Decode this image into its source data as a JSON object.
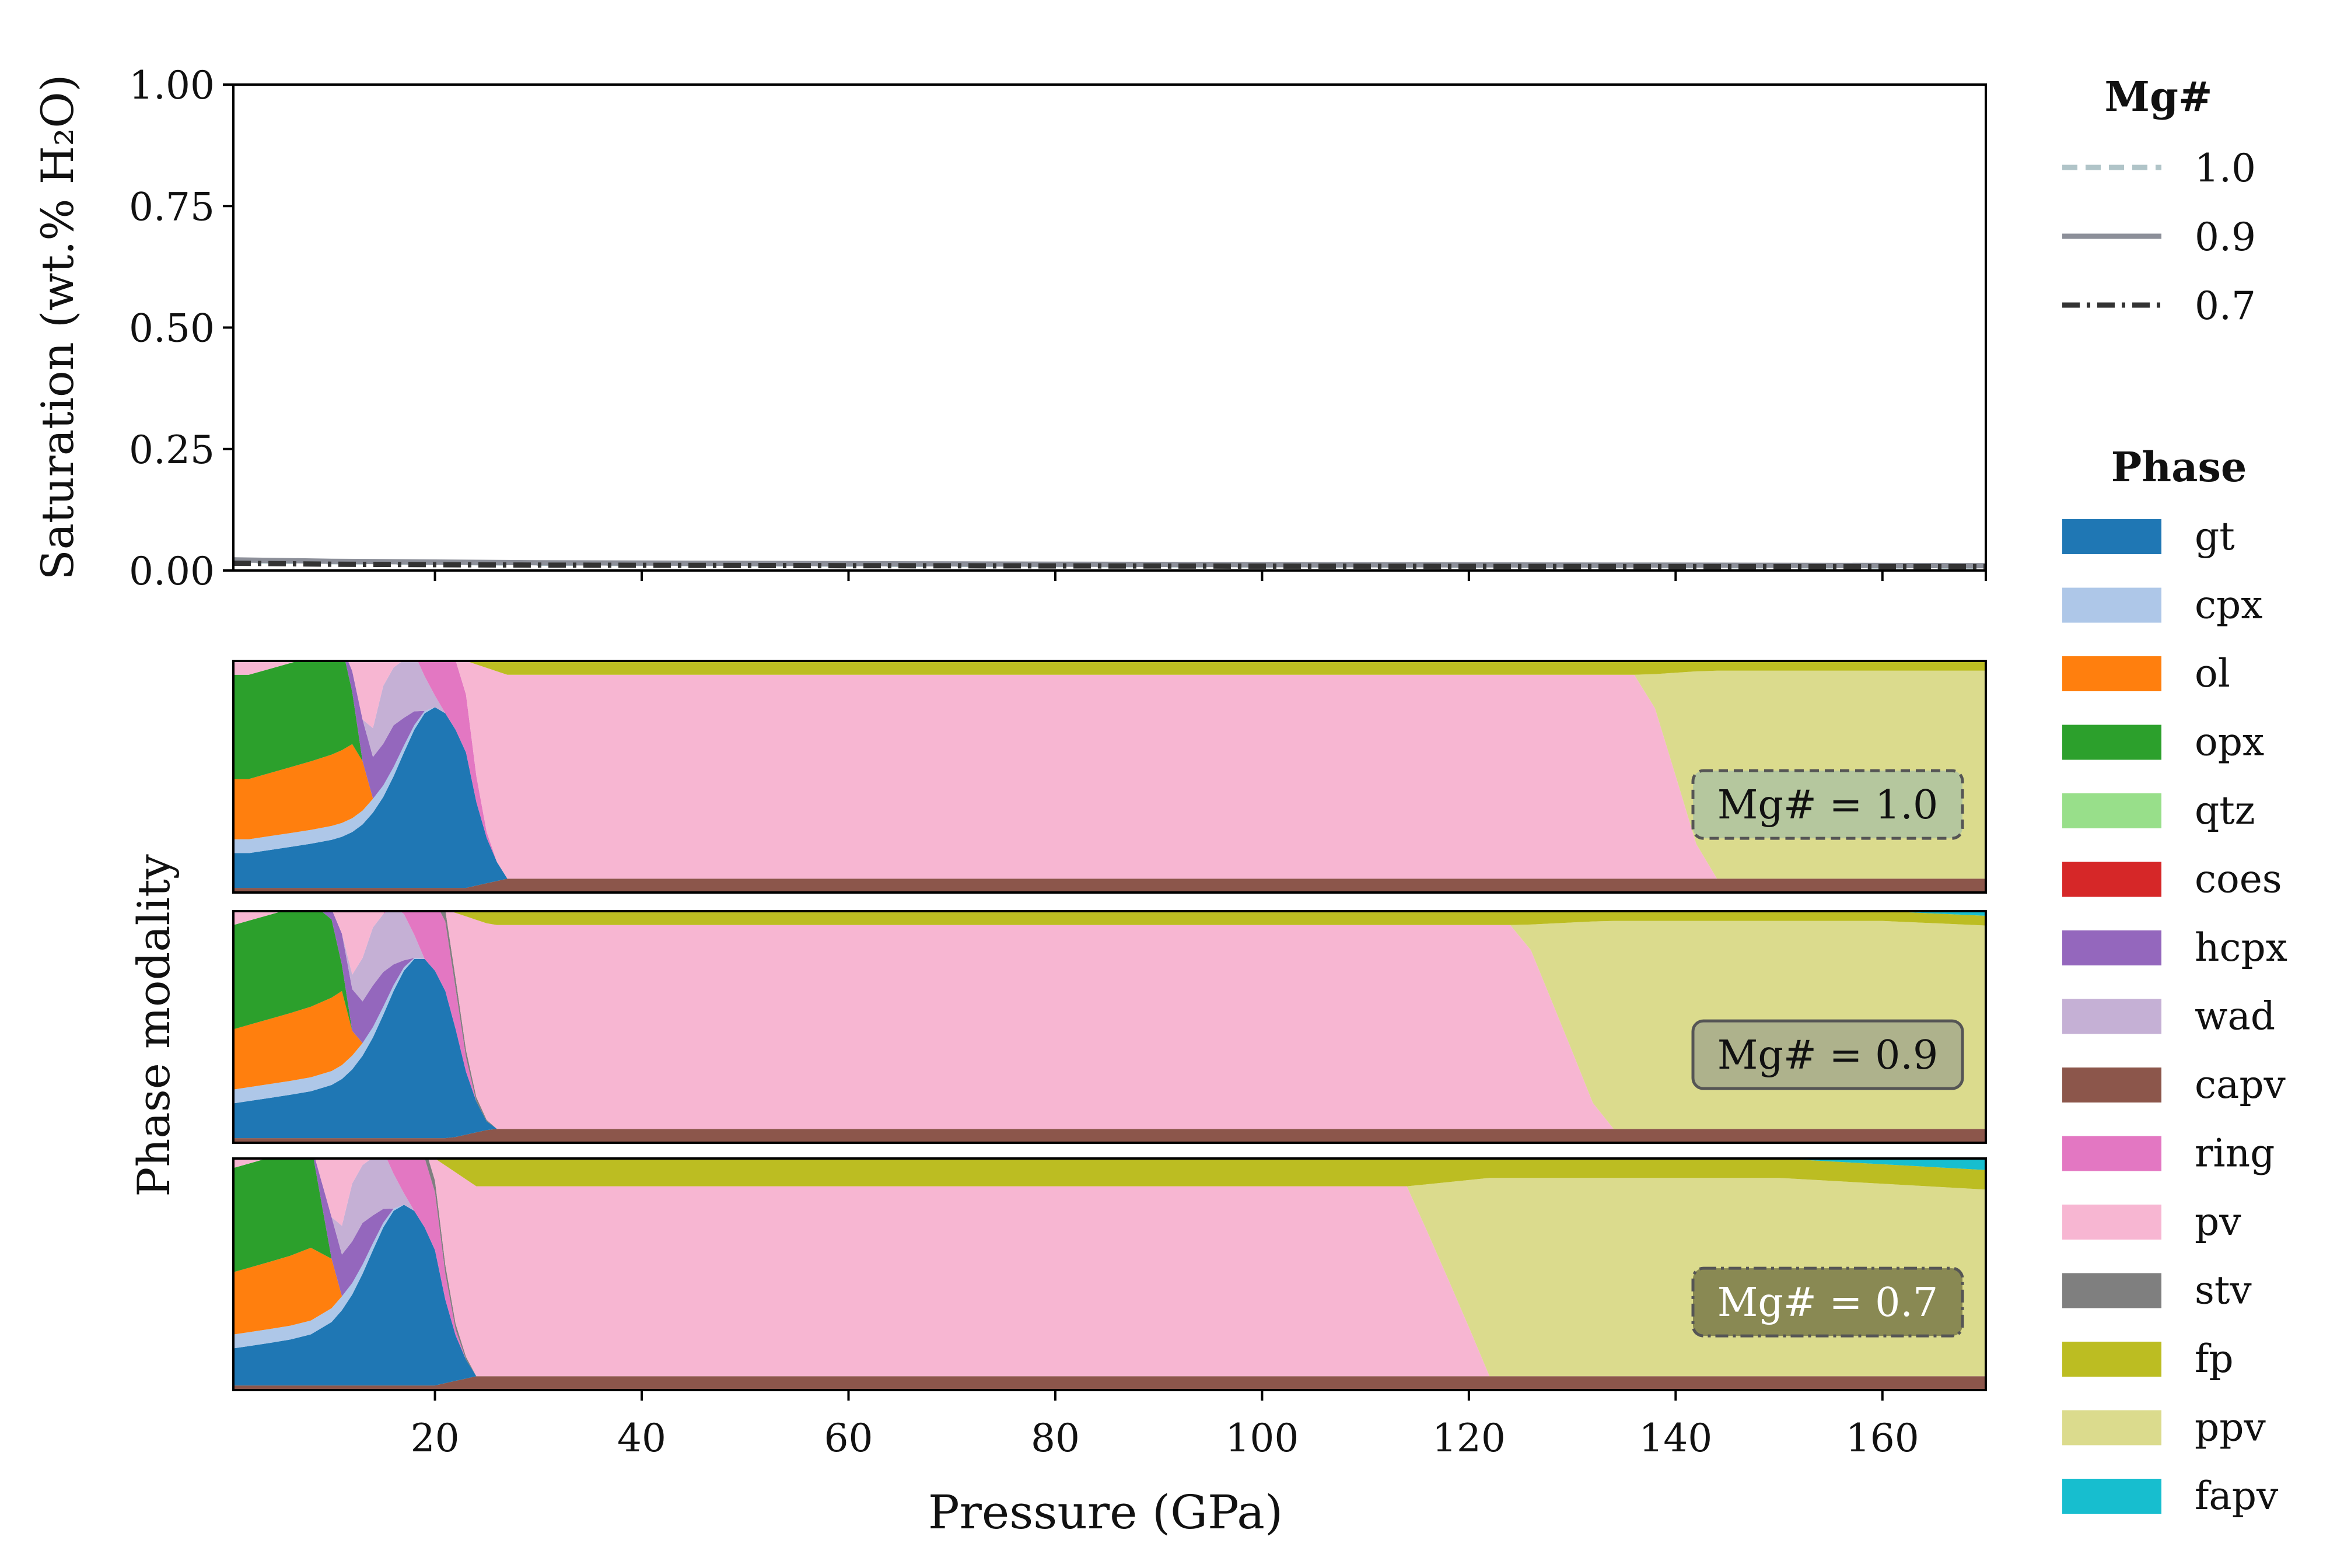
{
  "chart_data": [
    {
      "panel": "saturation",
      "type": "line",
      "ylabel": "Saturation (wt.% H₂O)",
      "ylim": [
        0,
        1.0
      ],
      "xlim": [
        0.5,
        170
      ],
      "yticks": [
        "0.00",
        "0.25",
        "0.50",
        "0.75",
        "1.00"
      ],
      "legend_title": "Mg#",
      "legend_position": "top-right, outside",
      "series": [
        {
          "name": "1.0",
          "style": "dashed",
          "color": "#b0c4c8",
          "points": [
            [
              0.5,
              0.02
            ],
            [
              10,
              0.018
            ],
            [
              30,
              0.015
            ],
            [
              60,
              0.013
            ],
            [
              100,
              0.011
            ],
            [
              140,
              0.01
            ],
            [
              170,
              0.009
            ]
          ]
        },
        {
          "name": "0.9",
          "style": "solid",
          "color": "#8c8f99",
          "points": [
            [
              0.5,
              0.022
            ],
            [
              10,
              0.019
            ],
            [
              30,
              0.016
            ],
            [
              60,
              0.014
            ],
            [
              100,
              0.012
            ],
            [
              140,
              0.011
            ],
            [
              170,
              0.01
            ]
          ]
        },
        {
          "name": "0.7",
          "style": "dashdot",
          "color": "#333333",
          "points": [
            [
              0.5,
              0.015
            ],
            [
              10,
              0.013
            ],
            [
              30,
              0.011
            ],
            [
              60,
              0.01
            ],
            [
              100,
              0.009
            ],
            [
              140,
              0.008
            ],
            [
              170,
              0.008
            ]
          ]
        }
      ]
    },
    {
      "panel": "phase modality",
      "type": "area",
      "ylabel": "Phase modality",
      "xlabel": "Pressure (GPa)",
      "xlim": [
        0.5,
        170
      ],
      "xticks": [
        "20",
        "40",
        "60",
        "80",
        "100",
        "120",
        "140",
        "160"
      ],
      "legend_title": "Phase",
      "legend_position": "right, outside",
      "phases": [
        {
          "name": "gt",
          "color": "#1f77b4"
        },
        {
          "name": "cpx",
          "color": "#aec7e8"
        },
        {
          "name": "ol",
          "color": "#ff7f0e"
        },
        {
          "name": "opx",
          "color": "#2ca02c"
        },
        {
          "name": "qtz",
          "color": "#98df8a"
        },
        {
          "name": "coes",
          "color": "#d62728"
        },
        {
          "name": "hcpx",
          "color": "#9467bd"
        },
        {
          "name": "wad",
          "color": "#c5b0d5"
        },
        {
          "name": "capv",
          "color": "#8c564b"
        },
        {
          "name": "ring",
          "color": "#e377c2"
        },
        {
          "name": "pv",
          "color": "#f7b6d2"
        },
        {
          "name": "stv",
          "color": "#7f7f7f"
        },
        {
          "name": "fp",
          "color": "#bcbd22"
        },
        {
          "name": "ppv",
          "color": "#dbdb8d"
        },
        {
          "name": "fapv",
          "color": "#17becf"
        }
      ],
      "subpanels": [
        {
          "label": "Mg# = 1.0",
          "box_color": "#b0c4a0",
          "box_style": "dashed",
          "pv_to_ppv_GPa": [
            137,
            143
          ]
        },
        {
          "label": "Mg# = 0.9",
          "box_color": "#a8ad8c",
          "box_style": "solid",
          "pv_to_ppv_GPa": [
            125,
            133
          ]
        },
        {
          "label": "Mg# = 0.7",
          "box_color": "#7f7f4c",
          "box_style": "dashdot",
          "pv_to_ppv_GPa": [
            114,
            122
          ]
        }
      ]
    }
  ]
}
